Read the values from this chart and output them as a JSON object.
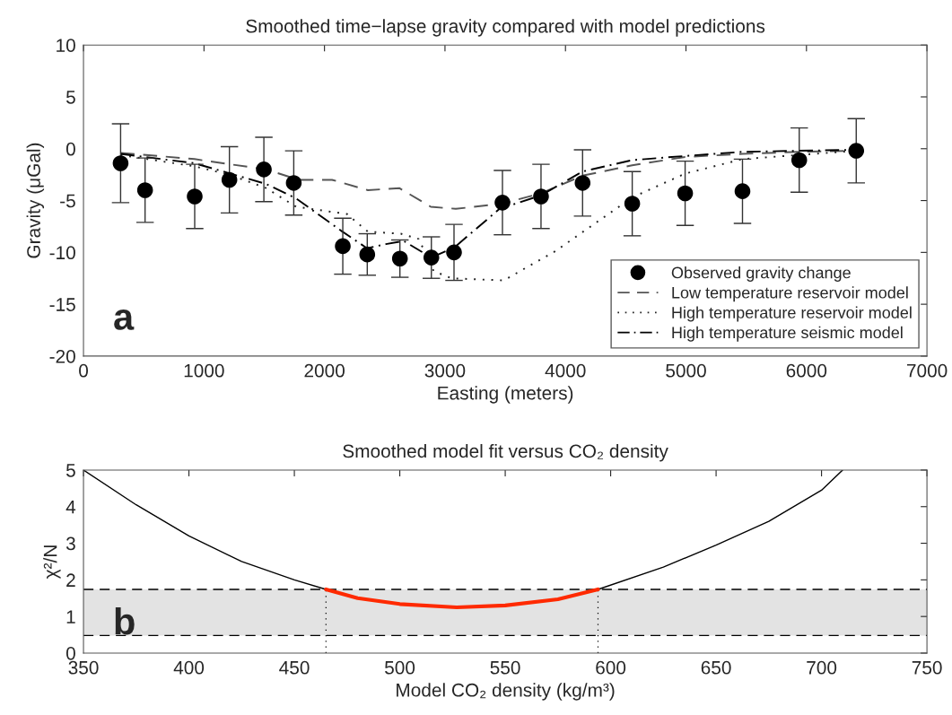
{
  "chart_data": [
    {
      "type": "line",
      "title": "Smoothed time−lapse gravity compared with model predictions",
      "xlabel": "Easting (meters)",
      "ylabel": "Gravity (μGal)",
      "xlim": [
        0,
        7000
      ],
      "xticks": [
        0,
        1000,
        2000,
        3000,
        4000,
        5000,
        6000,
        7000
      ],
      "ylim": [
        -20,
        10
      ],
      "yticks": [
        -20,
        -15,
        -10,
        -5,
        0,
        5,
        10
      ],
      "legend": "bottom right",
      "grid": false,
      "annotations": [
        "a"
      ],
      "series": [
        {
          "name": "Observed gravity change",
          "type": "scatter",
          "marker": "circle",
          "color": "#000000",
          "x": [
            308,
            511,
            923,
            1211,
            1497,
            1745,
            2152,
            2355,
            2626,
            2887,
            3075,
            3477,
            3797,
            4142,
            4554,
            4993,
            5469,
            5940,
            6413
          ],
          "values": [
            -1.4,
            -4.0,
            -4.6,
            -3.0,
            -2.0,
            -3.3,
            -9.4,
            -10.2,
            -10.6,
            -10.5,
            -10.0,
            -5.2,
            -4.6,
            -3.3,
            -5.3,
            -4.3,
            -4.1,
            -1.1,
            -0.2
          ],
          "errors": [
            3.8,
            3.1,
            3.1,
            3.2,
            3.1,
            3.1,
            2.7,
            2.0,
            1.8,
            2.0,
            2.7,
            3.1,
            3.1,
            3.2,
            3.1,
            3.1,
            3.1,
            3.1,
            3.1
          ]
        },
        {
          "name": "Low temperature reservoir model",
          "line_style": "dashed",
          "color": "#555555",
          "x": [
            308,
            921,
            1516,
            1787,
            2063,
            2360,
            2621,
            2882,
            3090,
            3477,
            3797,
            4142,
            4554,
            4993,
            5469,
            5940,
            6413
          ],
          "values": [
            -0.4,
            -1.0,
            -2.0,
            -3.0,
            -3.0,
            -4.0,
            -3.8,
            -5.6,
            -5.8,
            -5.3,
            -4.3,
            -2.6,
            -1.6,
            -0.8,
            -0.5,
            -0.3,
            -0.2
          ]
        },
        {
          "name": "High temperature reservoir model",
          "line_style": "dotted",
          "color": "#222222",
          "x": [
            308,
            921,
            1211,
            1516,
            1765,
            2187,
            2361,
            2633,
            2782,
            2906,
            3053,
            3488,
            3913,
            4554,
            4993,
            5469,
            5940,
            6413
          ],
          "values": [
            -0.6,
            -1.7,
            -2.5,
            -3.8,
            -5.6,
            -6.3,
            -8.0,
            -8.2,
            -8.7,
            -11.8,
            -12.5,
            -12.7,
            -9.9,
            -4.7,
            -2.4,
            -1.0,
            -0.6,
            -0.2
          ]
        },
        {
          "name": "High temperature seismic model",
          "line_style": "dashdot",
          "color": "#000000",
          "x": [
            308,
            921,
            1191,
            1516,
            1765,
            2137,
            2353,
            2509,
            2658,
            2887,
            3080,
            3453,
            3797,
            4142,
            4554,
            4993,
            5469,
            5940,
            6413
          ],
          "values": [
            -0.5,
            -1.4,
            -2.3,
            -3.4,
            -4.8,
            -7.9,
            -9.6,
            -9.2,
            -8.9,
            -10.5,
            -9.5,
            -5.8,
            -4.5,
            -2.2,
            -1.1,
            -0.7,
            -0.3,
            -0.2,
            -0.1
          ]
        }
      ]
    },
    {
      "type": "line",
      "title": "Smoothed model fit versus CO₂ density",
      "xlabel": "Model CO₂ density (kg/m³)",
      "ylabel": "χ²/N",
      "xlim": [
        350,
        750
      ],
      "xticks": [
        350,
        400,
        450,
        500,
        550,
        600,
        650,
        700,
        750
      ],
      "ylim": [
        0,
        5
      ],
      "yticks": [
        0,
        1,
        2,
        3,
        4,
        5
      ],
      "legend": false,
      "grid": false,
      "annotations": [
        "b"
      ],
      "bands": [
        {
          "axis": "y",
          "from": 0.48,
          "to": 1.74,
          "color": "#e3e3e3"
        }
      ],
      "ref_lines": [
        {
          "axis": "y",
          "value": 0.48,
          "line_style": "dashed",
          "color": "#000000"
        },
        {
          "axis": "y",
          "value": 1.74,
          "line_style": "dashed",
          "color": "#000000"
        },
        {
          "axis": "x",
          "value": 465,
          "line_style": "dotted",
          "color": "#000000"
        },
        {
          "axis": "x",
          "value": 594,
          "line_style": "dotted",
          "color": "#000000"
        }
      ],
      "series": [
        {
          "line_style": "solid",
          "color": "#000000",
          "x": [
            350,
            375,
            400,
            425,
            450,
            465,
            500,
            594,
            625,
            650,
            675,
            700,
            710
          ],
          "values": [
            5.0,
            4.05,
            3.2,
            2.5,
            2.0,
            1.74,
            null,
            1.74,
            2.35,
            2.95,
            3.6,
            4.45,
            5.0
          ]
        },
        {
          "line_style": "solid",
          "color": "#ff2a00",
          "x": [
            465,
            480,
            500,
            527,
            550,
            575,
            594
          ],
          "values": [
            1.74,
            1.5,
            1.34,
            1.25,
            1.3,
            1.47,
            1.74
          ]
        }
      ]
    }
  ]
}
